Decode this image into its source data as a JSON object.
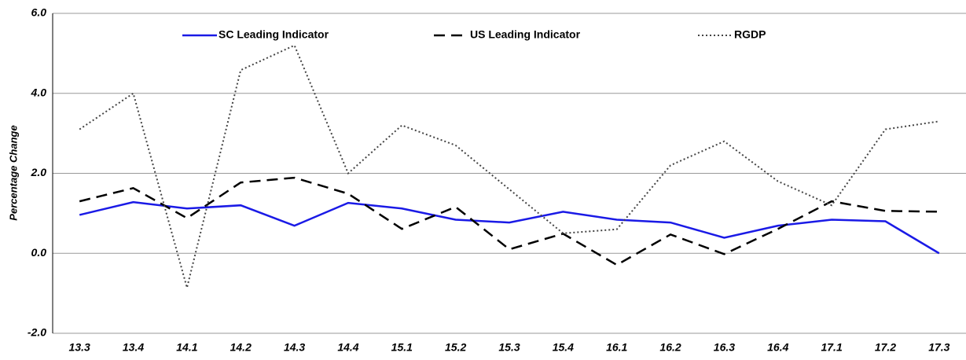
{
  "chart_data": {
    "type": "line",
    "y_label": "Percentage Change",
    "categories": [
      "13.3",
      "13.4",
      "14.1",
      "14.2",
      "14.3",
      "14.4",
      "15.1",
      "15.2",
      "15.3",
      "15.4",
      "16.1",
      "16.2",
      "16.3",
      "16.4",
      "17.1",
      "17.2",
      "17.3"
    ],
    "series": [
      {
        "name": "SC Leading Indicator",
        "color": "#1a1ae6",
        "style": "solid",
        "values": [
          0.96,
          1.28,
          1.12,
          1.2,
          0.69,
          1.26,
          1.12,
          0.84,
          0.77,
          1.04,
          0.84,
          0.77,
          0.39,
          0.69,
          0.84,
          0.8,
          0.0
        ]
      },
      {
        "name": "US Leading Indicator",
        "color": "#000000",
        "style": "dashed",
        "values": [
          1.3,
          1.63,
          0.88,
          1.77,
          1.89,
          1.49,
          0.61,
          1.16,
          0.1,
          0.49,
          -0.29,
          0.47,
          -0.02,
          0.61,
          1.3,
          1.06,
          1.04
        ]
      },
      {
        "name": "RGDP",
        "color": "#444444",
        "style": "dotted",
        "values": [
          3.1,
          4.0,
          -0.86,
          4.58,
          5.2,
          2.0,
          3.2,
          2.7,
          1.6,
          0.5,
          0.6,
          2.2,
          2.8,
          1.8,
          1.2,
          3.1,
          3.3
        ]
      }
    ],
    "ylim": [
      -2,
      6
    ],
    "yticks": [
      {
        "value": -2,
        "label": "-2.0"
      },
      {
        "value": 0,
        "label": "0.0"
      },
      {
        "value": 2,
        "label": "2.0"
      },
      {
        "value": 4,
        "label": "4.0"
      },
      {
        "value": 6,
        "label": "6.0"
      }
    ],
    "grid": true,
    "legend": "top"
  }
}
